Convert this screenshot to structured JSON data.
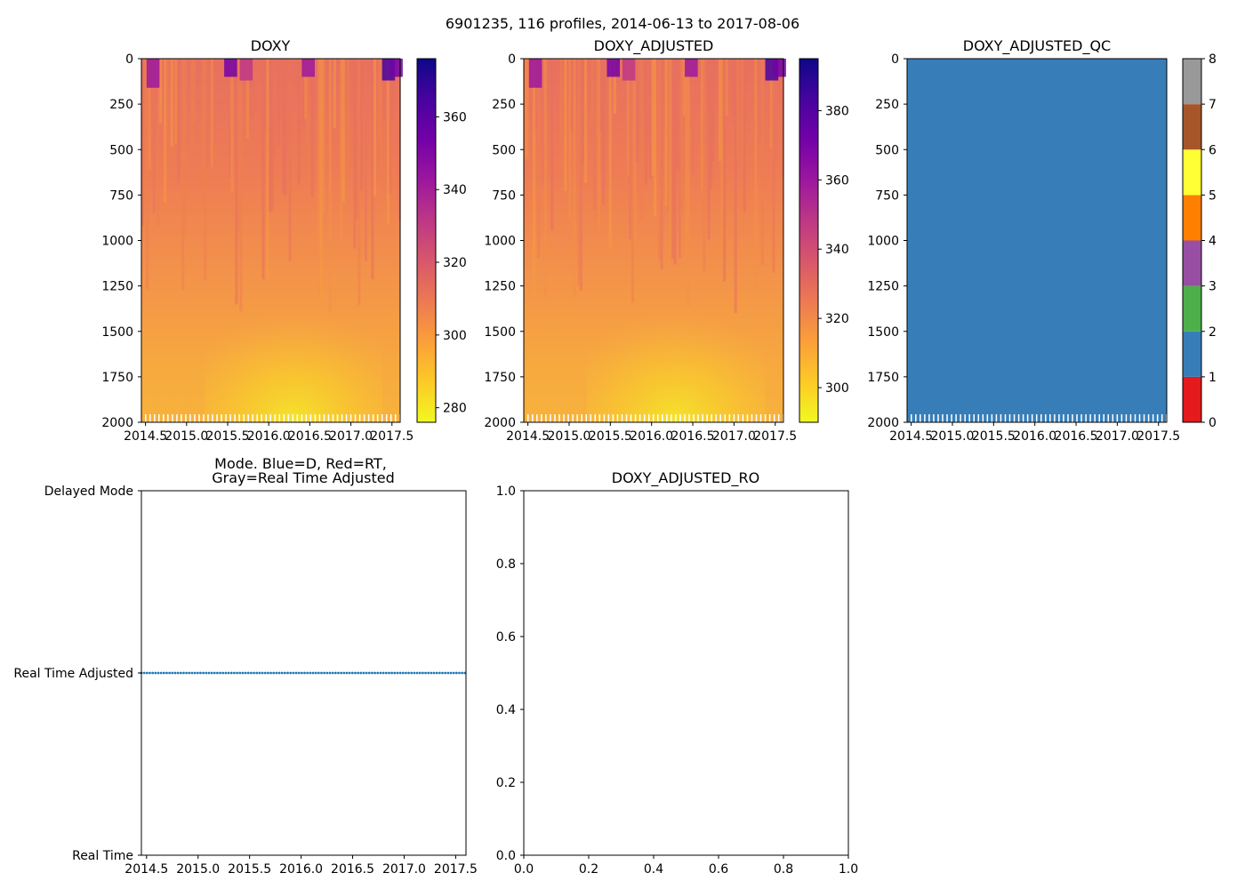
{
  "figure_title": "6901235, 116 profiles, 2014-06-13 to 2017-08-06",
  "colors": {
    "plasma": [
      "#0d0887",
      "#47039f",
      "#7301a8",
      "#9c179e",
      "#bd3786",
      "#d8576b",
      "#ed7953",
      "#fb9f3a",
      "#fdca26",
      "#f0f921"
    ],
    "qc_classes": [
      "#e41a1c",
      "#377eb8",
      "#4daf4a",
      "#984ea3",
      "#ff7f00",
      "#ffff33",
      "#a65628",
      "#f781bf",
      "#999999"
    ],
    "mode_points": "#1f77b4"
  },
  "chart_data": [
    {
      "type": "heatmap",
      "title": "DOXY",
      "ylim": [
        2000,
        0
      ],
      "yticks": [
        "0",
        "250",
        "500",
        "750",
        "1000",
        "1250",
        "1500",
        "1750",
        "2000"
      ],
      "xlim": [
        2014.45,
        2017.6
      ],
      "xticks": [
        "2014.5",
        "2015.0",
        "2015.5",
        "2016.0",
        "2016.5",
        "2017.0",
        "2017.5"
      ],
      "colorbar": {
        "range": [
          276,
          376
        ],
        "ticks": [
          "280",
          "300",
          "320",
          "340",
          "360"
        ],
        "cmap": "plasma_r"
      }
    },
    {
      "type": "heatmap",
      "title": "DOXY_ADJUSTED",
      "ylim": [
        2000,
        0
      ],
      "yticks": [
        "0",
        "250",
        "500",
        "750",
        "1000",
        "1250",
        "1500",
        "1750",
        "2000"
      ],
      "xlim": [
        2014.45,
        2017.6
      ],
      "xticks": [
        "2014.5",
        "2015.0",
        "2015.5",
        "2016.0",
        "2016.5",
        "2017.0",
        "2017.5"
      ],
      "colorbar": {
        "range": [
          290,
          395
        ],
        "ticks": [
          "300",
          "320",
          "340",
          "360",
          "380"
        ],
        "cmap": "plasma_r"
      }
    },
    {
      "type": "heatmap",
      "title": "DOXY_ADJUSTED_QC",
      "ylim": [
        2000,
        0
      ],
      "yticks": [
        "0",
        "250",
        "500",
        "750",
        "1000",
        "1250",
        "1500",
        "1750",
        "2000"
      ],
      "xlim": [
        2014.45,
        2017.6
      ],
      "xticks": [
        "2014.5",
        "2015.0",
        "2015.5",
        "2016.0",
        "2016.5",
        "2017.0",
        "2017.5"
      ],
      "value_everywhere": 1,
      "colorbar": {
        "range": [
          0,
          8
        ],
        "ticks": [
          "0",
          "1",
          "2",
          "3",
          "4",
          "5",
          "6",
          "7",
          "8"
        ],
        "cmap": "qc_classes"
      }
    },
    {
      "type": "scatter",
      "title": "Mode. Blue=D, Red=RT,",
      "title_line2": "Gray=Real Time Adjusted",
      "yticks": [
        "Real Time",
        "Real Time Adjusted",
        "Delayed Mode"
      ],
      "y_value_all_points": 1,
      "n_points": 116,
      "x_start": 2014.45,
      "x_end": 2017.59,
      "xlim": [
        2014.45,
        2017.6
      ],
      "xticks": [
        "2014.5",
        "2015.0",
        "2015.5",
        "2016.0",
        "2016.5",
        "2017.0",
        "2017.5"
      ]
    },
    {
      "type": "scatter",
      "title": "DOXY_ADJUSTED_RO",
      "xlim": [
        0,
        1
      ],
      "ylim": [
        0,
        1
      ],
      "xticks": [
        "0.0",
        "0.2",
        "0.4",
        "0.6",
        "0.8",
        "1.0"
      ],
      "yticks": [
        "0.0",
        "0.2",
        "0.4",
        "0.6",
        "0.8",
        "1.0"
      ],
      "series": []
    }
  ]
}
